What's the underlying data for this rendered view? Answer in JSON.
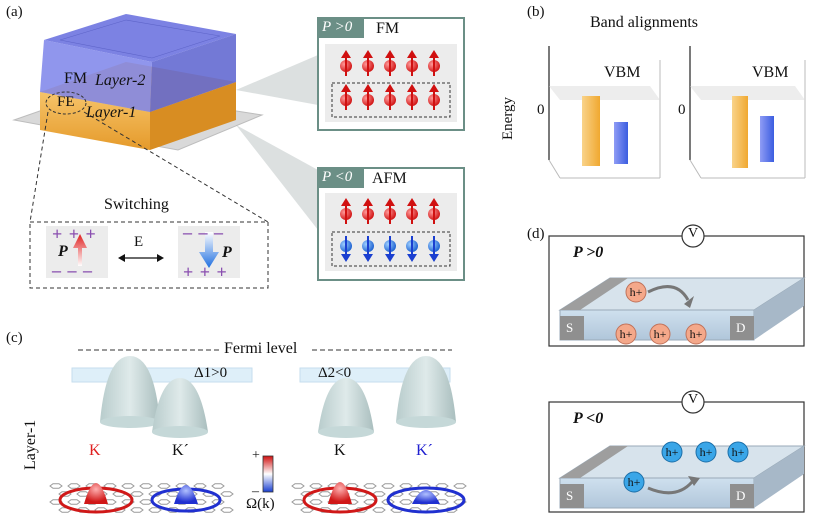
{
  "panel_labels": {
    "a": "(a)",
    "b": "(b)",
    "c": "(c)",
    "d": "(d)"
  },
  "panel_a": {
    "layer2_label": "Layer-2",
    "layer1_label": "Layer-1",
    "fm_tag": "FM",
    "fe_tag": "FE",
    "switching_title": "Switching",
    "field_label": "E",
    "pol_symbol": "P",
    "plus": "+ + +",
    "minus": "– – –",
    "box_pos": {
      "condition": "P >0",
      "state": "FM"
    },
    "box_neg": {
      "condition": "P <0",
      "state": "AFM"
    }
  },
  "panel_b": {
    "title": "Band alignments",
    "ylabel": "Energy",
    "zero": "0",
    "vbm_left": "VBM",
    "vbm_right": "VBM"
  },
  "panel_c": {
    "fermi": "Fermi level",
    "delta1": "Δ1>0",
    "delta2": "Δ2<0",
    "layer": "Layer-1",
    "valleys": [
      "K",
      "K´",
      "K",
      "K´"
    ],
    "cbar_plus": "+",
    "cbar_minus": "–",
    "cbar_label": "Ω(k)"
  },
  "panel_d": {
    "top": {
      "condition": "P >0",
      "meter": "V",
      "source": "S",
      "drain": "D",
      "hole": "h+"
    },
    "bottom": {
      "condition": "P <0",
      "meter": "V",
      "source": "S",
      "drain": "D",
      "hole": "h+"
    }
  },
  "colors": {
    "layer2": "#7f86e6",
    "layer1": "#f2b04a",
    "spin_up": "#e02020",
    "spin_down": "#1f6fe0",
    "box_border": "#6b8f86",
    "fe_purple": "#8a4fb0",
    "hole_pos": "#f4a88a",
    "hole_neg": "#3aa6e8",
    "valley_K": "#e02020",
    "valley_Kp": "#2020d0"
  }
}
